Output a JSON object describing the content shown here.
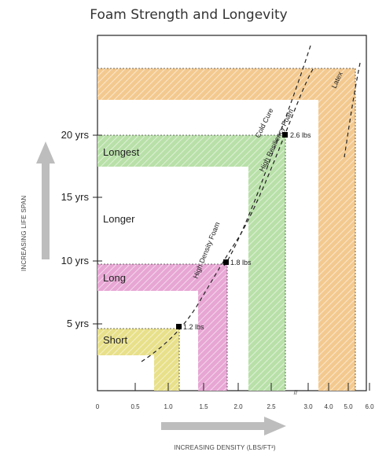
{
  "chart_data": {
    "type": "area",
    "title": "Foam Strength and Longevity",
    "ylabel": "INCREASING LIFE SPAN",
    "xlabel": "INCREASING DENSITY (LBS/FT³)",
    "x_ticks": [
      "0",
      "0.5",
      "1.0",
      "1.5",
      "2.0",
      "2.5",
      "3.0",
      "4.0",
      "5.0",
      "6.0"
    ],
    "y_ticks": [
      "5 yrs",
      "10 yrs",
      "15 yrs",
      "20 yrs"
    ],
    "axis_break": "//",
    "zones": [
      {
        "label": "Short",
        "color": "#e8e08a",
        "life_years_top": 5,
        "density_max": 1.2
      },
      {
        "label": "Long",
        "color": "#e7a6d4",
        "life_years_top": 10,
        "density_max": 1.8
      },
      {
        "label": "Longer",
        "color": "#ffffff",
        "life_years_top": 15,
        "density_max": 2.6
      },
      {
        "label": "Longest",
        "color": "#b8e0a8",
        "life_years_top": 20,
        "density_max": 2.6
      },
      {
        "label": "",
        "color": "#f3c98f",
        "life_years_top": 25,
        "density_max": 5.0
      }
    ],
    "curves": [
      {
        "name": "High Density Foam"
      },
      {
        "name": "Cold Cure"
      },
      {
        "name": "High Resiliency Foam"
      },
      {
        "name": "Latex"
      }
    ],
    "points": [
      {
        "density": 1.2,
        "years": 5,
        "label": "1.2 lbs"
      },
      {
        "density": 1.8,
        "years": 10,
        "label": "1.8 lbs"
      },
      {
        "density": 2.6,
        "years": 20,
        "label": "2.6 lbs"
      }
    ]
  }
}
